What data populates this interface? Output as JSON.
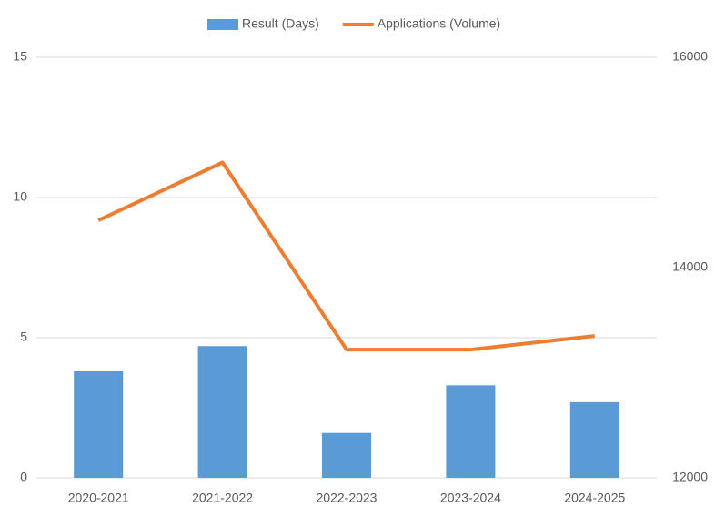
{
  "chart_data": {
    "type": "combo",
    "categories": [
      "2020-2021",
      "2021-2022",
      "2022-2023",
      "2023-2024",
      "2024-2025"
    ],
    "series": [
      {
        "name": "Result (Days)",
        "type": "bar",
        "color": "#5b9bd5",
        "values": [
          3.8,
          4.7,
          1.6,
          3.3,
          2.7
        ]
      },
      {
        "name": "Applications (Volume)",
        "type": "line",
        "axis": "y2",
        "color": "#ed7d31",
        "values": [
          14450,
          15000,
          13220,
          13220,
          13350
        ]
      }
    ],
    "ylim": [
      0,
      15
    ],
    "yticks": [
      0,
      5,
      10,
      15
    ],
    "y2lim": [
      12000,
      16000
    ],
    "y2ticks": [
      12000,
      14000,
      16000
    ],
    "grid": true,
    "legend": "top"
  }
}
